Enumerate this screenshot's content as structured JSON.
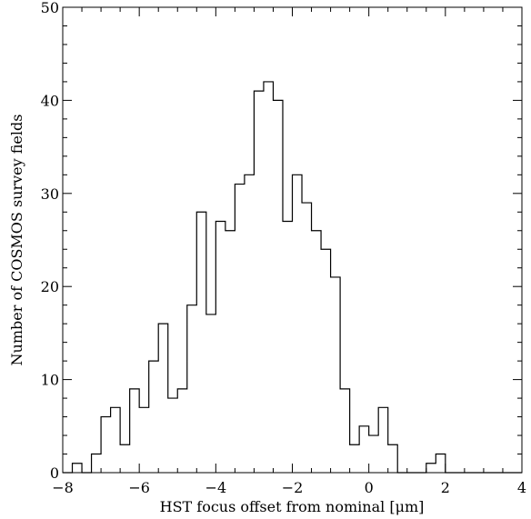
{
  "chart_data": {
    "type": "bar",
    "style": "step-histogram",
    "title": "",
    "xlabel": "HST focus offset from nominal [μm]",
    "ylabel": "Number of COSMOS survey fields",
    "xlim": [
      -8,
      4
    ],
    "ylim": [
      0,
      50
    ],
    "x_ticks": [
      "−8",
      "−6",
      "−4",
      "−2",
      "0",
      "2",
      "4"
    ],
    "y_ticks": [
      "0",
      "10",
      "20",
      "30",
      "40",
      "50"
    ],
    "bin_width": 0.25,
    "bin_start": -8,
    "counts": [
      0,
      1,
      0,
      2,
      6,
      7,
      3,
      9,
      7,
      12,
      16,
      8,
      9,
      18,
      28,
      17,
      27,
      26,
      31,
      32,
      41,
      42,
      40,
      27,
      32,
      29,
      26,
      24,
      21,
      9,
      3,
      5,
      4,
      7,
      3,
      0,
      0,
      0,
      1,
      2,
      0,
      0,
      0,
      0,
      0,
      0,
      0,
      0
    ],
    "grid": false,
    "color": "#000000"
  }
}
